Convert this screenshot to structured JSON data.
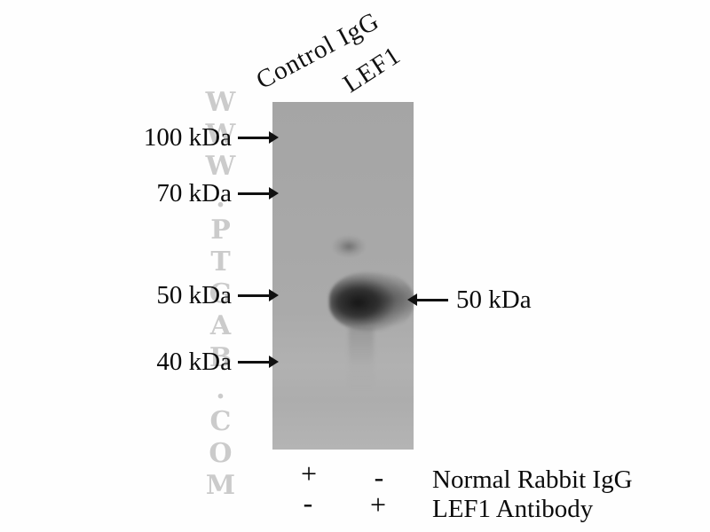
{
  "watermark": "WWW.PTGAB.COM",
  "lanes": [
    "Control IgG",
    "LEF1"
  ],
  "markers": [
    {
      "label": "100 kDa"
    },
    {
      "label": "70 kDa"
    },
    {
      "label": "50 kDa"
    },
    {
      "label": "40 kDa"
    }
  ],
  "band_annotation": {
    "label": "50 kDa"
  },
  "treatments": [
    {
      "lane1": "+",
      "lane2": "-",
      "label": "Normal Rabbit IgG"
    },
    {
      "lane1": "-",
      "lane2": "+",
      "label": "LEF1 Antibody"
    }
  ],
  "bands": [
    {
      "lane": "LEF1",
      "approx_position": "60 kDa",
      "intensity": "faint"
    },
    {
      "lane": "LEF1",
      "approx_position": "50 kDa",
      "intensity": "strong"
    }
  ],
  "colors": {
    "membrane": "#a8a8a8",
    "band_core": "#1d1d1d",
    "watermark": "#cbcbcb",
    "text": "#0a0a0a"
  }
}
